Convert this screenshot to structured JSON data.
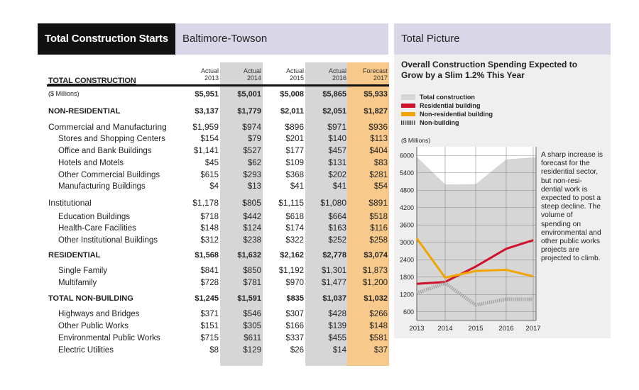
{
  "left_panel": {
    "tab_title": "Total Construction Starts",
    "region": "Baltimore-Towson",
    "total_label": "TOTAL CONSTRUCTION",
    "columns": [
      {
        "kind": "Actual",
        "year": "2013"
      },
      {
        "kind": "Actual",
        "year": "2014"
      },
      {
        "kind": "Actual",
        "year": "2015"
      },
      {
        "kind": "Actual",
        "year": "2016"
      },
      {
        "kind": "Forecast",
        "year": "2017"
      }
    ],
    "rows": [
      {
        "label": "($ Millions)",
        "values": [
          "$5,951",
          "$5,001",
          "$5,008",
          "$5,865",
          "$5,933"
        ]
      },
      {
        "label": "NON-RESIDENTIAL",
        "values": [
          "$3,137",
          "$1,779",
          "$2,011",
          "$2,051",
          "$1,827"
        ]
      },
      {
        "label": "Commercial and Manufacturing",
        "values": [
          "$1,959",
          "$974",
          "$896",
          "$971",
          "$936"
        ]
      },
      {
        "label": "Stores and Shopping Centers",
        "values": [
          "$154",
          "$79",
          "$201",
          "$140",
          "$113"
        ]
      },
      {
        "label": "Office and Bank Buildings",
        "values": [
          "$1,141",
          "$527",
          "$177",
          "$457",
          "$404"
        ]
      },
      {
        "label": "Hotels and Motels",
        "values": [
          "$45",
          "$62",
          "$109",
          "$131",
          "$83"
        ]
      },
      {
        "label": "Other Commercial Buildings",
        "values": [
          "$615",
          "$293",
          "$368",
          "$202",
          "$281"
        ]
      },
      {
        "label": "Manufacturing Buildings",
        "values": [
          "$4",
          "$13",
          "$41",
          "$41",
          "$54"
        ]
      },
      {
        "label": "Institutional",
        "values": [
          "$1,178",
          "$805",
          "$1,115",
          "$1,080",
          "$891"
        ]
      },
      {
        "label": "Education Buildings",
        "values": [
          "$718",
          "$442",
          "$618",
          "$664",
          "$518"
        ]
      },
      {
        "label": "Health-Care Facilities",
        "values": [
          "$148",
          "$124",
          "$174",
          "$163",
          "$116"
        ]
      },
      {
        "label": "Other Institutional Buildings",
        "values": [
          "$312",
          "$238",
          "$322",
          "$252",
          "$258"
        ]
      },
      {
        "label": "RESIDENTIAL",
        "values": [
          "$1,568",
          "$1,632",
          "$2,162",
          "$2,778",
          "$3,074"
        ]
      },
      {
        "label": "Single Family",
        "values": [
          "$841",
          "$850",
          "$1,192",
          "$1,301",
          "$1,873"
        ]
      },
      {
        "label": "Multifamily",
        "values": [
          "$728",
          "$781",
          "$970",
          "$1,477",
          "$1,200"
        ]
      },
      {
        "label": "TOTAL NON-BUILDING",
        "values": [
          "$1,245",
          "$1,591",
          "$835",
          "$1,037",
          "$1,032"
        ]
      },
      {
        "label": "Highways and Bridges",
        "values": [
          "$371",
          "$546",
          "$307",
          "$428",
          "$266"
        ]
      },
      {
        "label": "Other Public Works",
        "values": [
          "$151",
          "$305",
          "$166",
          "$139",
          "$148"
        ]
      },
      {
        "label": "Environmental Public Works",
        "values": [
          "$715",
          "$611",
          "$337",
          "$455",
          "$581"
        ]
      },
      {
        "label": "Electric Utilities",
        "values": [
          "$8",
          "$129",
          "$26",
          "$14",
          "$37"
        ]
      }
    ]
  },
  "right_panel": {
    "tab_title": "Total Picture",
    "annotation": "A sharp increase is forecast for the residential sector, but non-resi- dential work is expected to post a steep decline. The volume of spending on environmental and other public works projects are projected to climb."
  },
  "colors": {
    "total": "#d6d6d6",
    "residential": "#d0112b",
    "nonresidential": "#f0a500",
    "nonbuilding": "#9a9a9a",
    "forecast_col": "#f7c98a"
  },
  "chart_data": {
    "type": "line",
    "title": "Overall Construction Spending Expected to Grow by a Slim 1.2% This Year",
    "ylabel": "($ Millions)",
    "xlabel": "",
    "x": [
      "2013",
      "2014",
      "2015",
      "2016",
      "2017"
    ],
    "yticks": [
      600,
      1200,
      1800,
      2400,
      3000,
      3600,
      4200,
      4800,
      5400,
      6000
    ],
    "ylim": [
      300,
      6300
    ],
    "grid": true,
    "legend_position": "top-left",
    "series": [
      {
        "name": "Total construction",
        "style": "area",
        "values": [
          5951,
          5001,
          5008,
          5865,
          5933
        ]
      },
      {
        "name": "Residential building",
        "style": "line",
        "values": [
          1568,
          1632,
          2162,
          2778,
          3074
        ]
      },
      {
        "name": "Non-residential building",
        "style": "line",
        "values": [
          3137,
          1779,
          2011,
          2051,
          1827
        ]
      },
      {
        "name": "Non-building",
        "style": "dashed",
        "values": [
          1245,
          1591,
          835,
          1037,
          1032
        ]
      }
    ]
  }
}
